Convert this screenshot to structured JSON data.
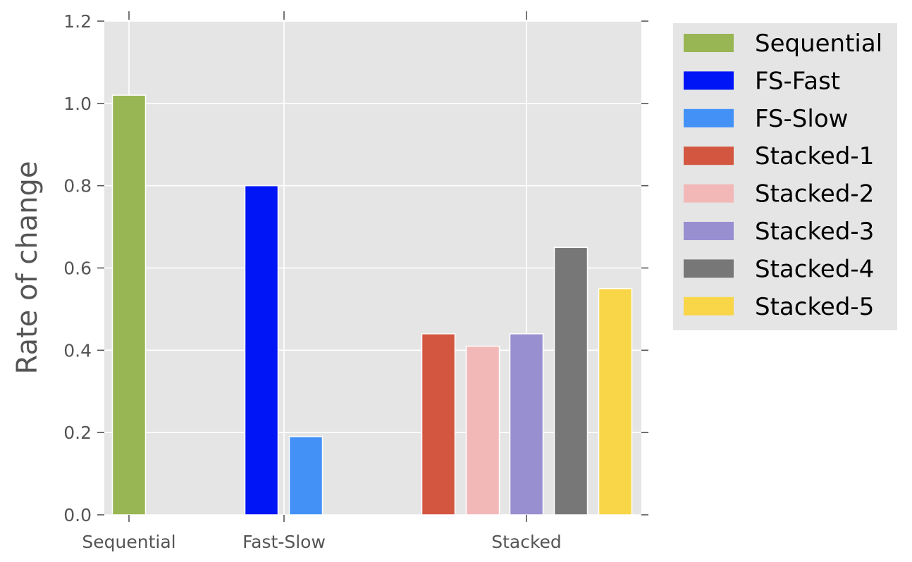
{
  "chart_data": {
    "type": "bar",
    "title": "",
    "xlabel": "",
    "ylabel": "Rate of change",
    "ylim": [
      0,
      1.2
    ],
    "yticks": [
      "0.0",
      "0.2",
      "0.4",
      "0.6",
      "0.8",
      "1.0",
      "1.2"
    ],
    "grid": true,
    "legend_position": "outside-right-top",
    "groups": [
      {
        "label": "Sequential"
      },
      {
        "label": "Fast-Slow"
      },
      {
        "label": "Stacked"
      }
    ],
    "series": [
      {
        "name": "Sequential",
        "color": "#98b653",
        "group": "Sequential",
        "value": 1.02
      },
      {
        "name": "FS-Fast",
        "color": "#0015f5",
        "group": "Fast-Slow",
        "value": 0.8
      },
      {
        "name": "FS-Slow",
        "color": "#4391f7",
        "group": "Fast-Slow",
        "value": 0.19
      },
      {
        "name": "Stacked-1",
        "color": "#d35640",
        "group": "Stacked",
        "value": 0.44
      },
      {
        "name": "Stacked-2",
        "color": "#f2b8b8",
        "group": "Stacked",
        "value": 0.41
      },
      {
        "name": "Stacked-3",
        "color": "#988fd1",
        "group": "Stacked",
        "value": 0.44
      },
      {
        "name": "Stacked-4",
        "color": "#777777",
        "group": "Stacked",
        "value": 0.65
      },
      {
        "name": "Stacked-5",
        "color": "#f9d548",
        "group": "Stacked",
        "value": 0.55
      }
    ],
    "plot_background": "#e5e5e5",
    "grid_color": "#ffffff"
  }
}
